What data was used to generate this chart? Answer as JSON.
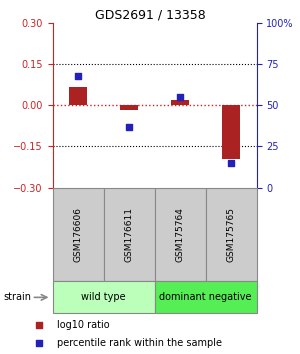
{
  "title": "GDS2691 / 13358",
  "samples": [
    "GSM176606",
    "GSM176611",
    "GSM175764",
    "GSM175765"
  ],
  "log10_ratio": [
    0.065,
    -0.018,
    0.018,
    -0.195
  ],
  "percentile_rank": [
    68,
    37,
    55,
    15
  ],
  "ylim_left": [
    -0.3,
    0.3
  ],
  "ylim_right": [
    0,
    100
  ],
  "yticks_left": [
    -0.3,
    -0.15,
    0,
    0.15,
    0.3
  ],
  "yticks_right": [
    0,
    25,
    50,
    75,
    100
  ],
  "ytick_labels_right": [
    "0",
    "25",
    "50",
    "75",
    "100%"
  ],
  "hlines_dotted": [
    0.15,
    -0.15
  ],
  "zero_line_y": 0,
  "bar_color": "#aa2222",
  "dot_color": "#2222bb",
  "groups": [
    {
      "label": "wild type",
      "start": 0,
      "end": 2,
      "color": "#bbffbb"
    },
    {
      "label": "dominant negative",
      "start": 2,
      "end": 4,
      "color": "#55ee55"
    }
  ],
  "strain_label": "strain",
  "legend_bar_label": "log10 ratio",
  "legend_dot_label": "percentile rank within the sample",
  "sample_box_color": "#cccccc",
  "sample_box_edge": "#888888",
  "zero_line_color": "#cc2222",
  "background_color": "#ffffff",
  "left_spine_color": "#cc2222",
  "right_spine_color": "#2222bb"
}
